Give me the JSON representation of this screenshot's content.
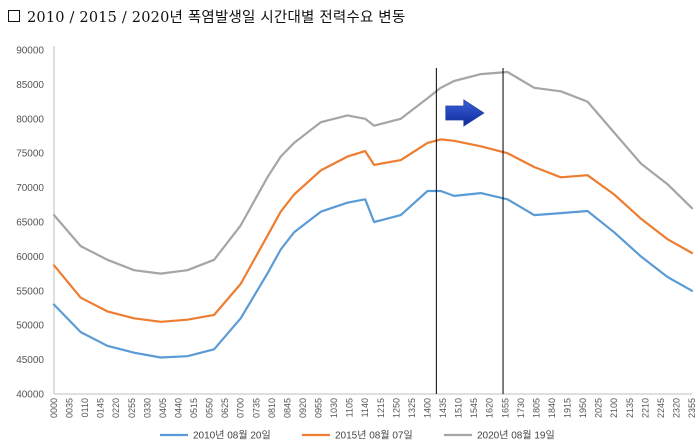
{
  "page": {
    "title": "2010 / 2015 / 2020년 폭염발생일 시간대별 전력수요 변동"
  },
  "chart_data": {
    "type": "line",
    "title": "2010 / 2015 / 2020년 폭염발생일 시간대별 전력수요 변동",
    "xlabel": "",
    "ylabel": "",
    "ylim": [
      40000,
      90000
    ],
    "yticks": [
      40000,
      45000,
      50000,
      55000,
      60000,
      65000,
      70000,
      75000,
      80000,
      85000,
      90000
    ],
    "x_tick_labels": [
      "0000",
      "0035",
      "0110",
      "0145",
      "0220",
      "0255",
      "0330",
      "0405",
      "0440",
      "0515",
      "0550",
      "0625",
      "0700",
      "0735",
      "0810",
      "0845",
      "0920",
      "0955",
      "1030",
      "1105",
      "1140",
      "1215",
      "1250",
      "1325",
      "1400",
      "1435",
      "1510",
      "1545",
      "1620",
      "1655",
      "1730",
      "1805",
      "1840",
      "1915",
      "1950",
      "2025",
      "2100",
      "2135",
      "2210",
      "2245",
      "2320",
      "2355"
    ],
    "grid": false,
    "legend_position": "bottom",
    "x": [
      "0000",
      "0100",
      "0200",
      "0300",
      "0400",
      "0500",
      "0600",
      "0700",
      "0800",
      "0830",
      "0900",
      "1000",
      "1100",
      "1140",
      "1200",
      "1300",
      "1400",
      "1430",
      "1500",
      "1600",
      "1700",
      "1800",
      "1900",
      "2000",
      "2100",
      "2200",
      "2300",
      "2355"
    ],
    "series": [
      {
        "name": "2010년 08월 20일",
        "color": "#5b9bd5",
        "values": [
          53000,
          49000,
          47000,
          46000,
          45300,
          45500,
          46500,
          51000,
          57500,
          61000,
          63500,
          66500,
          67800,
          68300,
          65000,
          66000,
          69500,
          69500,
          68800,
          69200,
          68300,
          66000,
          66300,
          66600,
          63500,
          60000,
          57000,
          55000
        ]
      },
      {
        "name": "2015년 08월 07일",
        "color": "#ed7d31",
        "values": [
          58700,
          54000,
          52000,
          51000,
          50500,
          50800,
          51500,
          56000,
          63000,
          66500,
          69000,
          72500,
          74500,
          75300,
          73300,
          74000,
          76500,
          77000,
          76800,
          76000,
          75000,
          73000,
          71500,
          71800,
          69000,
          65500,
          62500,
          60500
        ]
      },
      {
        "name": "2020년 08월 19일",
        "color": "#a5a5a5",
        "values": [
          66000,
          61500,
          59500,
          58000,
          57500,
          58000,
          59500,
          64500,
          71500,
          74500,
          76500,
          79500,
          80500,
          80000,
          79000,
          80000,
          83000,
          84500,
          85500,
          86500,
          86800,
          84500,
          84000,
          82500,
          78000,
          73500,
          70500,
          67000
        ]
      }
    ],
    "annotations": {
      "vertical_lines_at": [
        "1420",
        "1650"
      ],
      "arrow": "right-pointing blue arrow near the peak of the 2020 series"
    }
  }
}
